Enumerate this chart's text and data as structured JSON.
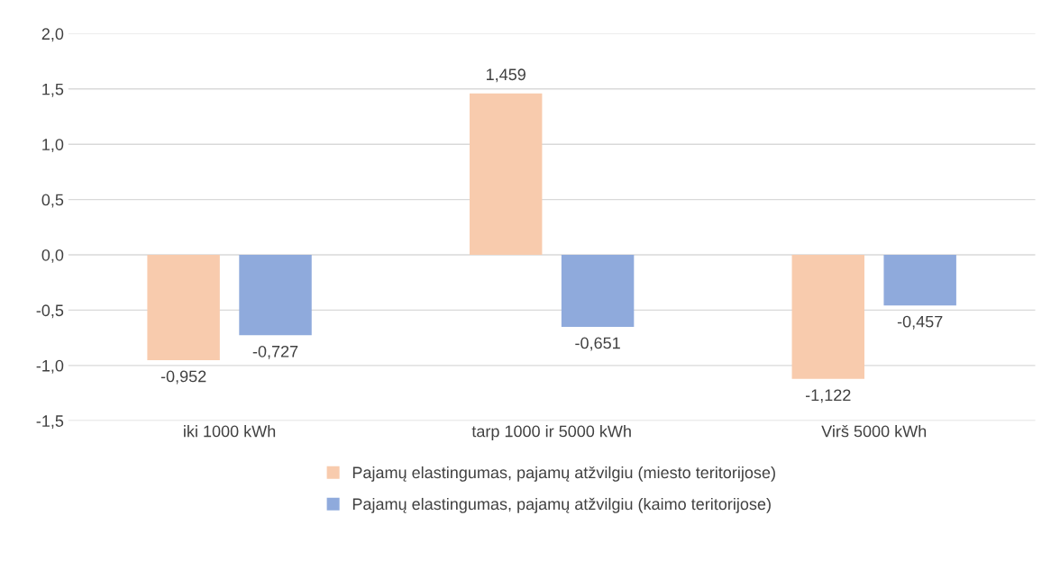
{
  "chart_data": {
    "type": "bar",
    "categories": [
      "iki 1000 kWh",
      "tarp 1000 ir 5000 kWh",
      "Virš 5000 kWh"
    ],
    "series": [
      {
        "name": "Pajamų elastingumas, pajamų atžvilgiu (miesto teritorijose)",
        "color": "#f8cbad",
        "values": [
          -0.952,
          1.459,
          -1.122
        ],
        "value_labels": [
          "-0,952",
          "1,459",
          "-1,122"
        ]
      },
      {
        "name": "Pajamų elastingumas, pajamų atžvilgiu (kaimo teritorijose)",
        "color": "#8faadc",
        "values": [
          -0.727,
          -0.651,
          -0.457
        ],
        "value_labels": [
          "-0,727",
          "-0,651",
          "-0,457"
        ]
      }
    ],
    "ylim": [
      -1.5,
      2.0
    ],
    "yticks": [
      {
        "value": -1.5,
        "label": "-1,5"
      },
      {
        "value": -1.0,
        "label": "-1,0"
      },
      {
        "value": -0.5,
        "label": "-0,5"
      },
      {
        "value": 0.0,
        "label": "0,0"
      },
      {
        "value": 0.5,
        "label": "0,5"
      },
      {
        "value": 1.0,
        "label": "1,0"
      },
      {
        "value": 1.5,
        "label": "1,5"
      },
      {
        "value": 2.0,
        "label": "2,0"
      }
    ],
    "grid": "y",
    "legend": "bottom"
  }
}
